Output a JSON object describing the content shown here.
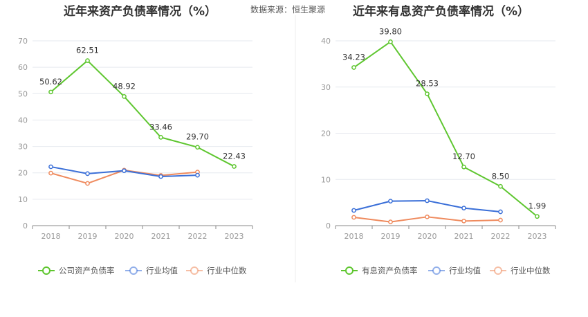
{
  "header": {
    "title_left": "近年来资产负债率情况（%）",
    "title_right": "近年来有息资产负债率情况（%）",
    "source": "数据来源：恒生聚源"
  },
  "colors": {
    "company": "#5ec62f",
    "industry_avg": "#3a6fd8",
    "industry_median": "#ef8a5d",
    "grid": "#e6e9ef",
    "axis": "#888888"
  },
  "chart_data": [
    {
      "type": "line",
      "title": "近年来资产负债率情况（%）",
      "categories": [
        "2018",
        "2019",
        "2020",
        "2021",
        "2022",
        "2023"
      ],
      "ylim": [
        0,
        70
      ],
      "yticks": [
        0,
        10,
        20,
        30,
        40,
        50,
        60,
        70
      ],
      "grid": true,
      "legend_placement": "bottom",
      "series": [
        {
          "name": "公司资产负债率",
          "color": "#5ec62f",
          "labeled": true,
          "values": [
            50.62,
            62.51,
            48.92,
            33.46,
            29.7,
            22.43
          ],
          "labels": [
            "50.62",
            "62.51",
            "48.92",
            "33.46",
            "29.70",
            "22.43"
          ]
        },
        {
          "name": "行业均值",
          "color": "#3a6fd8",
          "labeled": false,
          "values": [
            22.3,
            19.7,
            20.8,
            18.6,
            19.1,
            null
          ]
        },
        {
          "name": "行业中位数",
          "color": "#ef8a5d",
          "labeled": false,
          "values": [
            19.9,
            16.0,
            21.0,
            19.0,
            20.3,
            null
          ]
        }
      ]
    },
    {
      "type": "line",
      "title": "近年来有息资产负债率情况（%）",
      "categories": [
        "2018",
        "2019",
        "2020",
        "2021",
        "2022",
        "2023"
      ],
      "ylim": [
        0,
        40
      ],
      "yticks": [
        0,
        10,
        20,
        30,
        40
      ],
      "grid": true,
      "legend_placement": "bottom",
      "series": [
        {
          "name": "有息资产负债率",
          "color": "#5ec62f",
          "labeled": true,
          "values": [
            34.23,
            39.8,
            28.53,
            12.7,
            8.5,
            1.99
          ],
          "labels": [
            "34.23",
            "39.80",
            "28.53",
            "12.70",
            "8.50",
            "1.99"
          ]
        },
        {
          "name": "行业均值",
          "color": "#3a6fd8",
          "labeled": false,
          "values": [
            3.3,
            5.3,
            5.4,
            3.8,
            3.0,
            null
          ]
        },
        {
          "name": "行业中位数",
          "color": "#ef8a5d",
          "labeled": false,
          "values": [
            1.8,
            0.8,
            1.9,
            1.0,
            1.2,
            null
          ]
        }
      ]
    }
  ]
}
